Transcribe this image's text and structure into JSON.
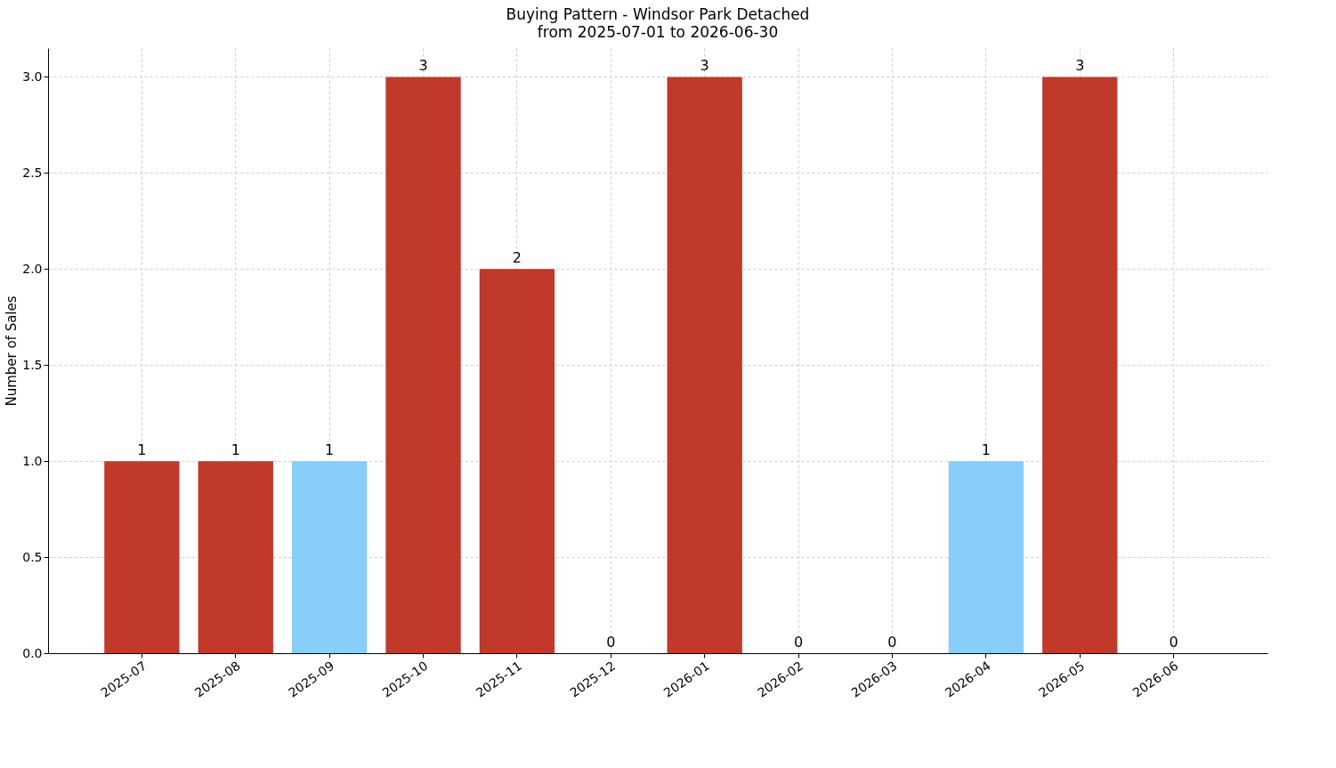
{
  "chart_data": {
    "type": "bar",
    "title": "Buying Pattern - Windsor Park Detached",
    "subtitle": "from 2025-07-01 to 2026-06-30",
    "ylabel": "Number of Sales",
    "categories": [
      "2025-07",
      "2025-08",
      "2025-09",
      "2025-10",
      "2025-11",
      "2025-12",
      "2026-01",
      "2026-02",
      "2026-03",
      "2026-04",
      "2026-05",
      "2026-06"
    ],
    "values": [
      1,
      1,
      1,
      3,
      2,
      0,
      3,
      0,
      0,
      1,
      3,
      0
    ],
    "colors": [
      "#c0392b",
      "#c0392b",
      "#87cefa",
      "#c0392b",
      "#c0392b",
      "#c0392b",
      "#c0392b",
      "#c0392b",
      "#c0392b",
      "#87cefa",
      "#c0392b",
      "#c0392b"
    ],
    "ylim": [
      0,
      3.15
    ],
    "yticks": [
      {
        "value": 0,
        "label": "0.0"
      },
      {
        "value": 0.5,
        "label": "0.5"
      },
      {
        "value": 1,
        "label": "1.0"
      },
      {
        "value": 1.5,
        "label": "1.5"
      },
      {
        "value": 2,
        "label": "2.0"
      },
      {
        "value": 2.5,
        "label": "2.5"
      },
      {
        "value": 3,
        "label": "3.0"
      }
    ],
    "grid": true,
    "data_labels": true
  }
}
